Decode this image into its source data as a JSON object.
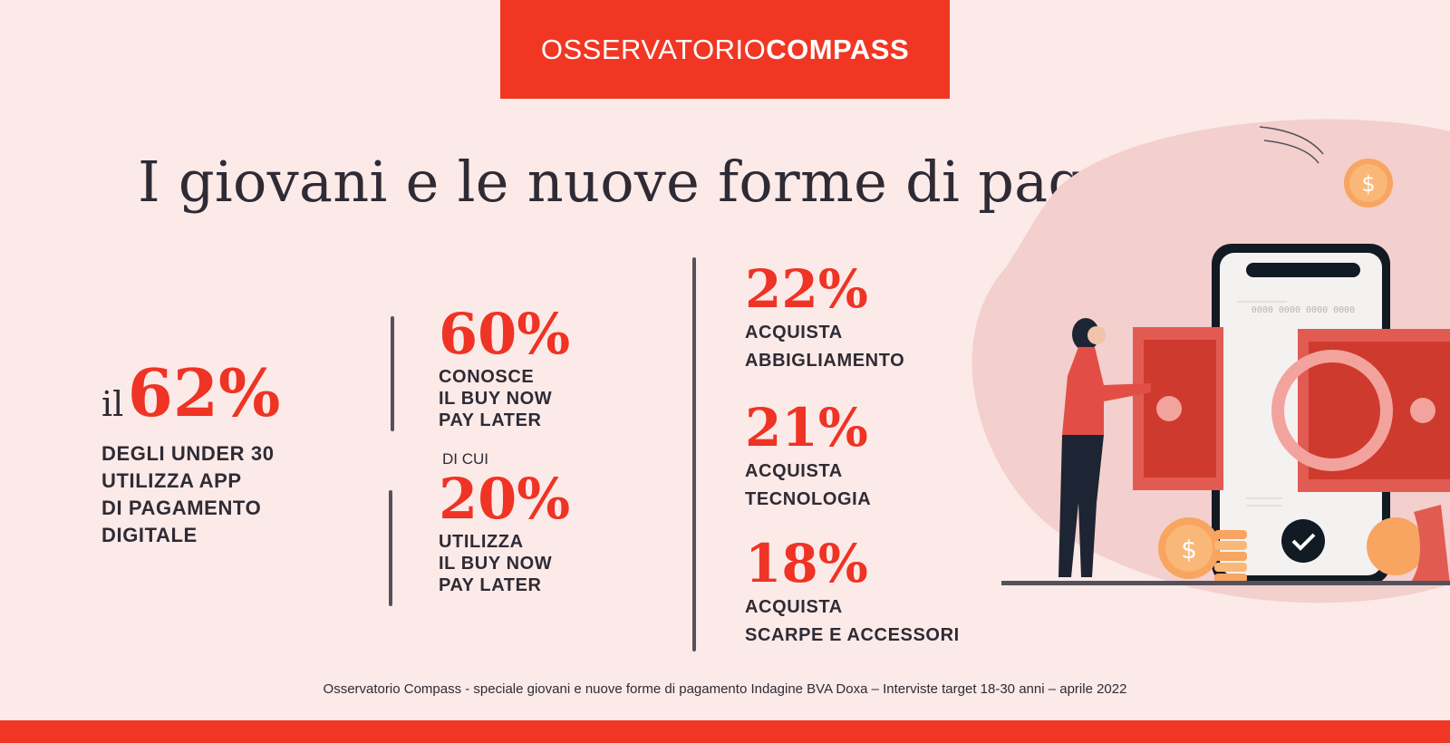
{
  "header": {
    "brand_light": "OSSERVATORIO",
    "brand_bold": "COMPASS"
  },
  "title": "I giovani e le nuove forme di pagamento",
  "stat_main": {
    "lead": "il",
    "value": "62%",
    "lines": [
      "DEGLI UNDER 30",
      "UTILIZZA APP",
      "DI PAGAMENTO",
      "DIGITALE"
    ]
  },
  "stat_bnpl_know": {
    "value": "60%",
    "lines": [
      "CONOSCE",
      "IL BUY NOW",
      "PAY LATER"
    ]
  },
  "connector": "DI CUI",
  "stat_bnpl_use": {
    "value": "20%",
    "lines": [
      "UTILIZZA",
      "IL BUY NOW",
      "PAY LATER"
    ]
  },
  "purchases": [
    {
      "value": "22%",
      "lines": [
        "ACQUISTA",
        "ABBIGLIAMENTO"
      ]
    },
    {
      "value": "21%",
      "lines": [
        "ACQUISTA",
        "TECNOLOGIA"
      ]
    },
    {
      "value": "18%",
      "lines": [
        "ACQUISTA",
        "SCARPE E ACCESSORI"
      ]
    }
  ],
  "illustration": {
    "card_number": "0000 0000 0000 0000",
    "coin_symbol": "$"
  },
  "footnote": "Osservatorio Compass - speciale giovani e nuove forme di pagamento Indagine BVA Doxa – Interviste target 18-30 anni – aprile 2022",
  "colors": {
    "accent": "#f13723",
    "background": "#fbeae8",
    "text": "#2f2b35"
  }
}
